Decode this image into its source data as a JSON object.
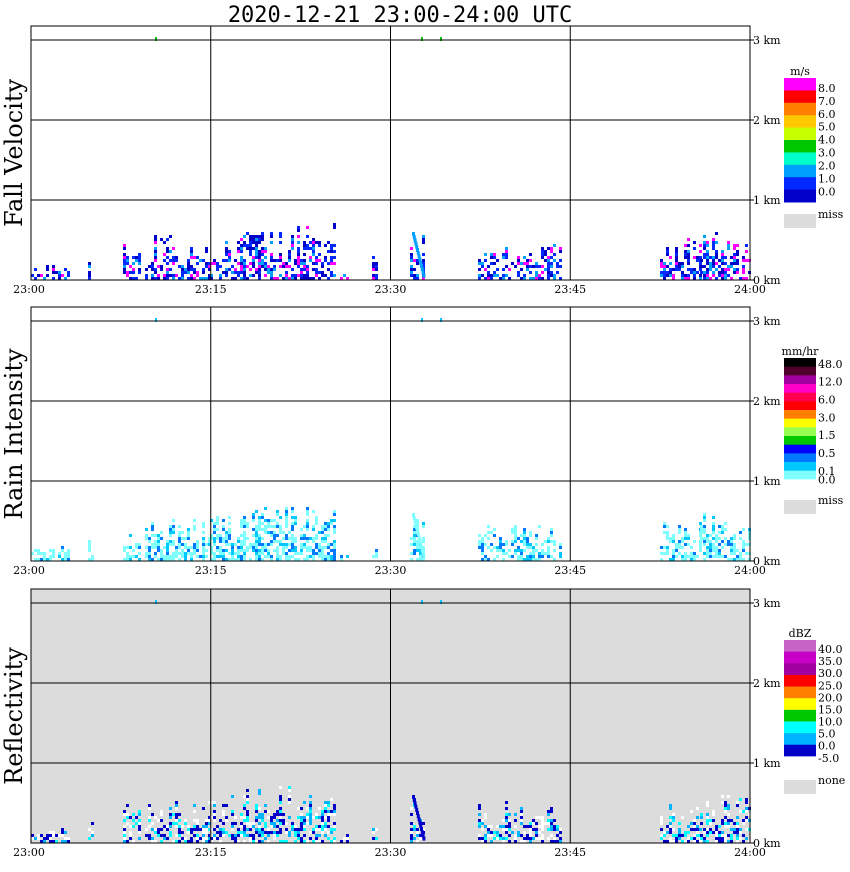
{
  "title": "2020-12-21   23:00-24:00 UTC",
  "chart_data": [
    {
      "type": "heatmap",
      "ylabel": "Fall Velocity",
      "x_ticks": [
        "23:00",
        "23:15",
        "23:30",
        "23:45",
        "24:00"
      ],
      "y_ticks": [
        "0 km",
        "1 km",
        "2 km",
        "3 km"
      ],
      "background": "#ffffff",
      "legend": {
        "unit": "m/s",
        "labels": [
          "8.0",
          "7.0",
          "6.0",
          "5.0",
          "4.0",
          "3.0",
          "2.0",
          "1.0",
          "0.0"
        ],
        "colors": [
          "#ff00ff",
          "#ff0000",
          "#ff7f00",
          "#ffc800",
          "#c8ff00",
          "#00c800",
          "#00ffc8",
          "#00a0ff",
          "#0028ff",
          "#0000c8"
        ],
        "miss_label": "miss",
        "miss_color": "#dcdcdc"
      }
    },
    {
      "type": "heatmap",
      "ylabel": "Rain Intensity",
      "x_ticks": [
        "23:00",
        "23:15",
        "23:30",
        "23:45",
        "24:00"
      ],
      "y_ticks": [
        "0 km",
        "1 km",
        "2 km",
        "3 km"
      ],
      "background": "#ffffff",
      "legend": {
        "unit": "mm/hr",
        "labels": [
          "48.0",
          "",
          "12.0",
          "",
          "6.0",
          "",
          "3.0",
          "",
          "1.5",
          "",
          "0.5",
          "",
          "0.1",
          "0.0"
        ],
        "colors": [
          "#000000",
          "#50002a",
          "#a000a0",
          "#ff00c8",
          "#ff0050",
          "#ff0000",
          "#ff7f00",
          "#ffff00",
          "#96ff50",
          "#00c800",
          "#0000ff",
          "#0078ff",
          "#00c8ff",
          "#80ffff",
          "#ffffff"
        ],
        "miss_label": "miss",
        "miss_color": "#dcdcdc"
      }
    },
    {
      "type": "heatmap",
      "ylabel": "Reflectivity",
      "x_ticks": [
        "23:00",
        "23:15",
        "23:30",
        "23:45",
        "24:00"
      ],
      "y_ticks": [
        "0 km",
        "1 km",
        "2 km",
        "3 km"
      ],
      "background": "#dcdcdc",
      "legend": {
        "unit": "dBZ",
        "labels": [
          "40.0",
          "35.0",
          "30.0",
          "25.0",
          "20.0",
          "15.0",
          "10.0",
          "5.0",
          "0.0",
          "-5.0"
        ],
        "colors": [
          "#c864c8",
          "#c800c8",
          "#a000a0",
          "#ff0000",
          "#ff7f00",
          "#ffff00",
          "#00c800",
          "#00ffff",
          "#00b4ff",
          "#0000c8",
          "#ffffff"
        ],
        "miss_label": "none",
        "miss_color": "#dcdcdc"
      }
    }
  ]
}
